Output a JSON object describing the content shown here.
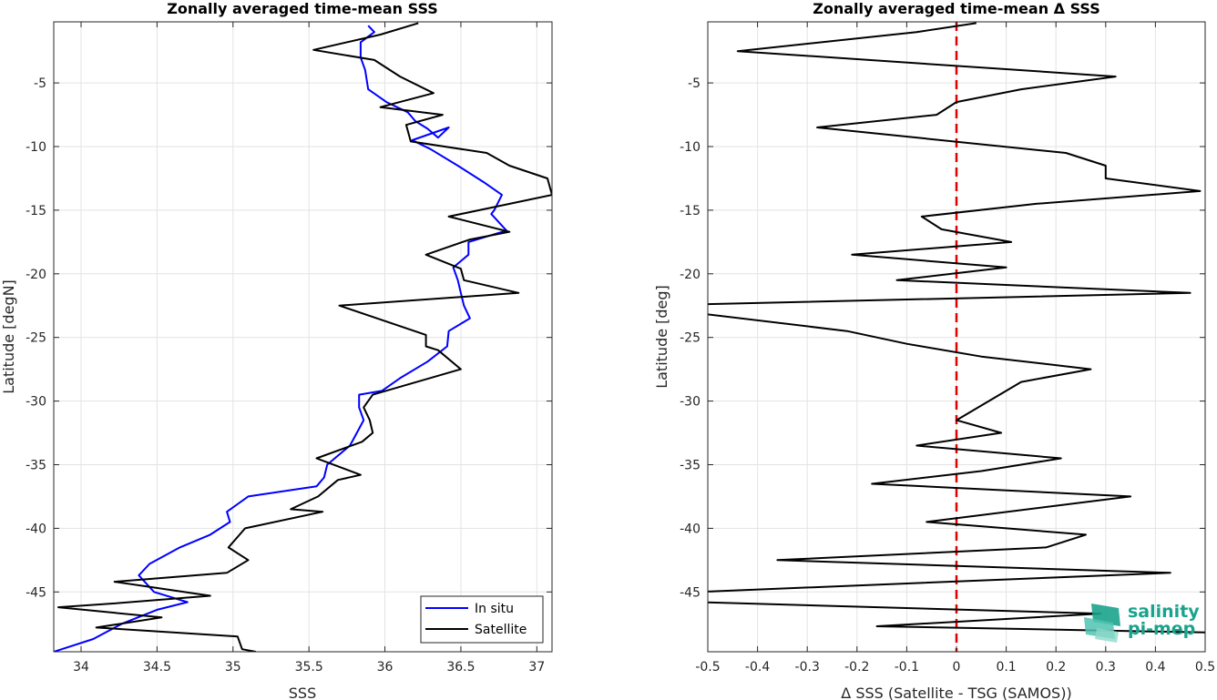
{
  "chart_data": [
    {
      "type": "line",
      "title": "Zonally averaged time-mean SSS",
      "xlabel": "SSS",
      "ylabel": "Latitude [degN]",
      "xlim": [
        33.82,
        37.1
      ],
      "ylim": [
        -49.7,
        -0.2
      ],
      "xticks": [
        34,
        34.5,
        35,
        35.5,
        36,
        36.5,
        37
      ],
      "yticks": [
        -5,
        -10,
        -15,
        -20,
        -25,
        -30,
        -35,
        -40,
        -45
      ],
      "grid": true,
      "legend_position": "bottom-right",
      "series": [
        {
          "name": "In situ",
          "color": "#0000ff",
          "x": [
            35.89,
            35.93,
            35.84,
            35.84,
            35.87,
            35.89,
            36.01,
            36.15,
            36.2,
            36.28,
            36.35,
            36.42,
            36.18,
            36.3,
            36.48,
            36.65,
            36.77,
            36.72,
            36.7,
            36.8,
            36.55,
            36.55,
            36.45,
            36.48,
            36.5,
            36.52,
            36.56,
            36.42,
            36.41,
            36.28,
            36.1,
            35.98,
            35.83,
            35.83,
            35.86,
            35.82,
            35.77,
            35.62,
            35.6,
            35.55,
            35.1,
            34.96,
            34.98,
            34.85,
            34.65,
            34.45,
            34.38,
            34.48,
            34.7,
            34.5,
            34.27,
            34.08,
            33.82
          ],
          "y": [
            -0.5,
            -1.0,
            -1.8,
            -3.0,
            -4.0,
            -5.5,
            -6.5,
            -7.3,
            -8.0,
            -8.6,
            -9.3,
            -8.5,
            -9.5,
            -10.2,
            -11.5,
            -12.8,
            -13.8,
            -15.0,
            -15.3,
            -16.6,
            -17.5,
            -18.5,
            -19.5,
            -20.5,
            -21.5,
            -22.5,
            -23.5,
            -24.5,
            -25.7,
            -26.9,
            -28.2,
            -29.2,
            -29.5,
            -30.5,
            -31.5,
            -32.4,
            -33.5,
            -35.0,
            -36.0,
            -36.7,
            -37.5,
            -38.7,
            -39.5,
            -40.5,
            -41.5,
            -42.8,
            -43.7,
            -45.0,
            -45.8,
            -46.4,
            -47.5,
            -48.7,
            -49.7
          ]
        },
        {
          "name": "Satellite",
          "color": "#000000",
          "x": [
            36.22,
            35.97,
            35.53,
            35.93,
            36.1,
            36.32,
            35.97,
            36.38,
            36.14,
            36.17,
            36.67,
            36.82,
            37.07,
            37.1,
            36.42,
            36.82,
            36.56,
            36.27,
            36.5,
            36.52,
            36.88,
            35.7,
            36.27,
            36.27,
            36.35,
            36.5,
            35.92,
            35.86,
            35.9,
            35.92,
            35.85,
            35.55,
            35.84,
            35.69,
            35.56,
            35.38,
            35.59,
            35.08,
            34.97,
            35.1,
            34.96,
            34.22,
            34.85,
            34.22,
            33.85,
            34.53,
            34.1,
            35.03,
            35.06,
            35.15
          ],
          "y": [
            -0.3,
            -1.2,
            -2.4,
            -3.2,
            -4.5,
            -5.8,
            -6.9,
            -7.5,
            -8.3,
            -9.6,
            -10.5,
            -11.5,
            -12.5,
            -13.8,
            -15.5,
            -16.7,
            -17.3,
            -18.5,
            -19.6,
            -20.5,
            -21.5,
            -22.5,
            -24.8,
            -25.7,
            -26.0,
            -27.5,
            -29.5,
            -30.5,
            -31.5,
            -32.5,
            -33.2,
            -34.5,
            -35.8,
            -36.2,
            -37.5,
            -38.5,
            -38.7,
            -40.0,
            -41.5,
            -42.5,
            -43.5,
            -44.2,
            -45.3,
            -45.9,
            -46.2,
            -47.0,
            -47.8,
            -48.5,
            -49.5,
            -49.7
          ]
        }
      ]
    },
    {
      "type": "line",
      "title": "Zonally averaged time-mean Δ SSS",
      "xlabel": "Δ SSS (Satellite - TSG (SAMOS))",
      "ylabel": "Latitude [deg]",
      "xlim": [
        -0.5,
        0.5
      ],
      "ylim": [
        -49.7,
        -0.2
      ],
      "xticks": [
        -0.5,
        -0.4,
        -0.3,
        -0.2,
        -0.1,
        0,
        0.1,
        0.2,
        0.3,
        0.4,
        0.5
      ],
      "xtick_labels": [
        "-0.5",
        "-0.4",
        "-0.3",
        "-0.2",
        "-0.1",
        "0",
        "0.1",
        "0.2",
        "0.3",
        "0.4",
        "0.5"
      ],
      "yticks": [
        -5,
        -10,
        -15,
        -20,
        -25,
        -30,
        -35,
        -40,
        -45
      ],
      "grid": true,
      "reference_line": {
        "x": 0,
        "color": "#e00000",
        "style": "dashed"
      },
      "series": [
        {
          "color": "#000000",
          "x": [
            0.04,
            -0.08,
            -0.44,
            0.32,
            0.13,
            0.0,
            -0.04,
            -0.28,
            0.22,
            0.3,
            0.3,
            0.49,
            0.16,
            -0.07,
            -0.03,
            0.11,
            -0.21,
            0.1,
            -0.12,
            0.47,
            -0.52,
            -0.52,
            -0.22,
            -0.1,
            0.05,
            0.27,
            0.13,
            0.0,
            0.09,
            -0.08,
            0.21,
            0.05,
            -0.17,
            0.35,
            -0.06,
            0.26,
            0.18,
            -0.36,
            0.43,
            -0.52,
            -0.52,
            0.29,
            -0.16,
            0.52
          ],
          "y": [
            -0.3,
            -1.0,
            -2.5,
            -4.5,
            -5.5,
            -6.5,
            -7.5,
            -8.5,
            -10.5,
            -11.5,
            -12.5,
            -13.5,
            -14.5,
            -15.5,
            -16.5,
            -17.5,
            -18.5,
            -19.5,
            -20.5,
            -21.5,
            -22.4,
            -23.1,
            -24.5,
            -25.5,
            -26.5,
            -27.5,
            -28.5,
            -31.5,
            -32.5,
            -33.5,
            -34.5,
            -35.5,
            -36.5,
            -37.5,
            -39.5,
            -40.5,
            -41.5,
            -42.5,
            -43.5,
            -45.0,
            -45.8,
            -46.7,
            -47.7,
            -48.2
          ]
        }
      ]
    }
  ],
  "legend": {
    "in_situ_label": "In situ",
    "satellite_label": "Satellite"
  },
  "logo": {
    "line1": "salinity",
    "line2": "pi-mep",
    "color": "#1aa38c"
  }
}
